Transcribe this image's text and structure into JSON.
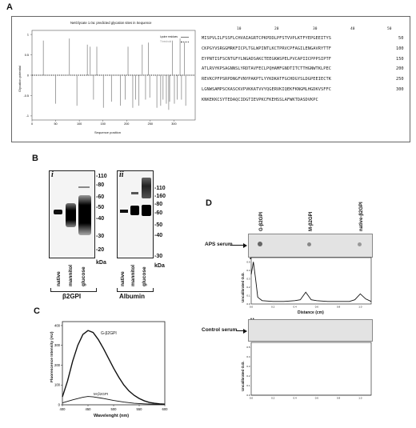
{
  "panels": {
    "a": {
      "letter": "A",
      "plot_title": "NetGlycate 1.0a: predicted glycation sites in Sequence",
      "legend": [
        "Lysine residues",
        "Threshold"
      ],
      "ylabel": "Glycation potential",
      "xlabel": "Sequence position",
      "yticks": [
        "1",
        "0.5",
        "0",
        "-0.5",
        "-1"
      ],
      "xticks": [
        "0",
        "50",
        "100",
        "150",
        "200",
        "250",
        "300"
      ],
      "seq_header": [
        "10",
        "20",
        "30",
        "40",
        "50"
      ],
      "sequence": [
        {
          "text": "MISPVLILFSSFLCHVAIAGRTCPKPDDLPFSTVVPLKTFYEPGEEITYS",
          "num": "50"
        },
        {
          "text": "CKPGYVSRGGMRKFICPLTGLWPINTLKCTPRVCPFAGILENGAVRYTTF",
          "num": "100"
        },
        {
          "text": "EYPNTISFSCNTGFYLNGADSAKCTEEGKWSPELPVCAPIICPPPSIPTF",
          "num": "150"
        },
        {
          "text": "ATLRVYKPSAGNNSLYRDTAVFECLPQHAMFGNDTITCTTHGNWTKLPEC",
          "num": "200"
        },
        {
          "text": "REVKCPFPSRPDNGFVNYPAKPTLYYKDKATFGCHDGYSLDGPEEIECTK",
          "num": "250"
        },
        {
          "text": "LGNWSAMPSCKASCKVPVKKATVVYQGERVKIQEKFKNGMLHGDKVSFFC",
          "num": "300"
        },
        {
          "text": "KNKEKKCSYTEDAQCIDGTIEVPKCFKEHSSLAFWKTDASDVKPC",
          "num": ""
        }
      ]
    },
    "b": {
      "letter": "B",
      "sub_i": "i",
      "sub_ii": "ii",
      "lanes": [
        "native",
        "mannitol",
        "glucose"
      ],
      "mw_i": [
        "110",
        "80",
        "60",
        "50",
        "40",
        "30",
        "20",
        "kDa"
      ],
      "mw_ii": [
        "160",
        "110",
        "80",
        "60",
        "50",
        "40",
        "30",
        "kDa"
      ],
      "label_i": "β2GPI",
      "label_ii": "Albumin"
    },
    "c": {
      "letter": "C",
      "ylabel": "Fluorescence Intensity (AU)",
      "xlabel": "Wavelenght (nm)",
      "curve_labels": [
        "G-β2GPI",
        "M-β2GPI"
      ],
      "yticks": [
        "400",
        "300",
        "200",
        "100",
        "0"
      ],
      "xticks": [
        "400",
        "450",
        "500",
        "550",
        "600"
      ]
    },
    "d": {
      "letter": "D",
      "columns": [
        "G-β2GPI",
        "M-β2GPI",
        "native-β2GPI"
      ],
      "sub_i": "i",
      "sub_ii": "ii",
      "row1_label": "APS serum",
      "row2_label": "Control serum",
      "ylabel": "Uncalibrated O.D.",
      "xlabel": "Distance (cm)",
      "xticks": [
        "0.0",
        "0.2",
        "0.4",
        "0.6",
        "0.8",
        "1.0"
      ],
      "yticks": [
        "0.5",
        "0.4",
        "0.3",
        "0.2",
        "0.1",
        "0.0"
      ]
    }
  },
  "chart_data": [
    {
      "type": "bar",
      "title": "NetGlycate 1.0a: predicted glycation sites in Sequence",
      "xlabel": "Sequence position",
      "ylabel": "Glycation potential",
      "xlim": [
        0,
        345
      ],
      "ylim": [
        -1.1,
        1.1
      ],
      "threshold": 0,
      "x": [
        24,
        50,
        79,
        95,
        117,
        123,
        130,
        137,
        151,
        168,
        187,
        197,
        203,
        213,
        219,
        226,
        233,
        240,
        246,
        249,
        264,
        272,
        277,
        284,
        289,
        291,
        297,
        301,
        307,
        313,
        316,
        322,
        325
      ],
      "values": [
        0.85,
        -0.7,
        0.9,
        -0.75,
        0.75,
        0.7,
        -0.6,
        0.7,
        -0.8,
        -0.65,
        -0.75,
        -0.6,
        0.7,
        -0.8,
        -0.6,
        -0.75,
        0.75,
        -0.6,
        0.8,
        -0.55,
        -0.8,
        -0.75,
        -0.6,
        -0.7,
        -0.85,
        -0.65,
        0.85,
        -0.7,
        -0.6,
        0.9,
        -0.6,
        0.8,
        -0.75
      ]
    },
    {
      "type": "line",
      "xlabel": "Wavelenght (nm)",
      "ylabel": "Fluorescence Intensity (AU)",
      "xlim": [
        400,
        600
      ],
      "ylim": [
        0,
        420
      ],
      "series": [
        {
          "name": "G-β2GPI",
          "x": [
            400,
            410,
            420,
            430,
            440,
            450,
            460,
            470,
            480,
            490,
            500,
            510,
            520,
            530,
            540,
            550,
            560,
            570,
            580,
            590,
            600
          ],
          "values": [
            40,
            120,
            220,
            300,
            355,
            375,
            365,
            330,
            285,
            235,
            185,
            140,
            100,
            70,
            48,
            32,
            20,
            12,
            8,
            5,
            3
          ]
        },
        {
          "name": "M-β2GPI",
          "x": [
            400,
            420,
            440,
            450,
            460,
            480,
            500,
            520,
            540,
            560,
            580,
            600
          ],
          "values": [
            10,
            25,
            38,
            42,
            40,
            32,
            22,
            14,
            8,
            5,
            3,
            2
          ]
        }
      ]
    },
    {
      "type": "line",
      "xlabel": "Distance (cm)",
      "ylabel": "Uncalibrated O.D.",
      "xlim": [
        0,
        1.1
      ],
      "ylim": [
        0,
        0.55
      ],
      "series": [
        {
          "x": [
            0.0,
            0.02,
            0.04,
            0.06,
            0.1,
            0.2,
            0.3,
            0.4,
            0.45,
            0.5,
            0.55,
            0.6,
            0.7,
            0.8,
            0.9,
            0.95,
            1.0,
            1.05,
            1.1
          ],
          "values": [
            0.35,
            0.5,
            0.3,
            0.08,
            0.04,
            0.03,
            0.03,
            0.04,
            0.05,
            0.14,
            0.05,
            0.04,
            0.03,
            0.03,
            0.03,
            0.05,
            0.12,
            0.06,
            0.03
          ]
        },
        {
          "x": [
            0.0,
            1.1
          ],
          "values": [
            0.0,
            0.0
          ]
        }
      ]
    }
  ]
}
